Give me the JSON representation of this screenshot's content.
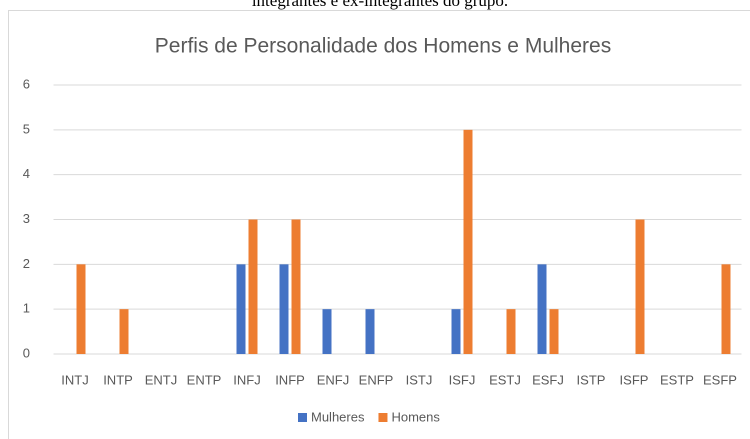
{
  "caption": "integrantes e ex-integrantes do grupo.",
  "chart_data": {
    "type": "bar",
    "title": "Perfis de Personalidade dos Homens e Mulheres",
    "categories": [
      "INTJ",
      "INTP",
      "ENTJ",
      "ENTP",
      "INFJ",
      "INFP",
      "ENFJ",
      "ENFP",
      "ISTJ",
      "ISFJ",
      "ESTJ",
      "ESFJ",
      "ISTP",
      "ISFP",
      "ESTP",
      "ESFP"
    ],
    "series": [
      {
        "name": "Mulheres",
        "color": "#4472c4",
        "values": [
          0,
          0,
          0,
          0,
          2,
          2,
          1,
          1,
          0,
          1,
          0,
          2,
          0,
          0,
          0,
          0
        ]
      },
      {
        "name": "Homens",
        "color": "#ed7d31",
        "values": [
          2,
          1,
          0,
          0,
          3,
          3,
          0,
          0,
          0,
          5,
          1,
          1,
          0,
          3,
          0,
          2
        ]
      }
    ],
    "ylim": [
      0,
      6
    ],
    "yticks": [
      0,
      1,
      2,
      3,
      4,
      5,
      6
    ],
    "grid": true,
    "legend": "bottom"
  }
}
